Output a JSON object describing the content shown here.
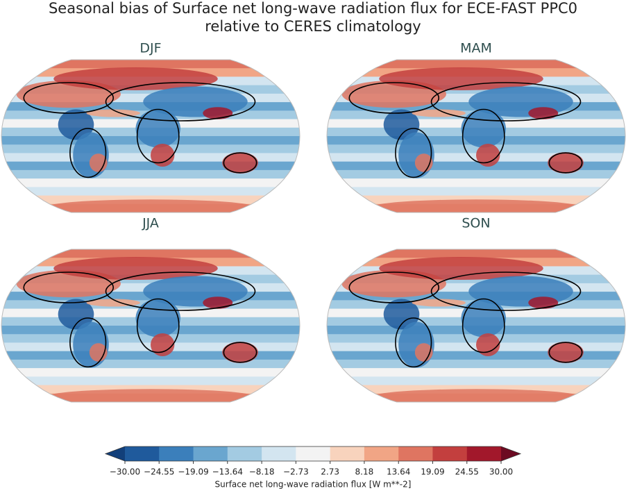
{
  "title": [
    "Seasonal bias of Surface net long-wave radiation flux for ECE-FAST PPC0",
    "relative to CERES climatology"
  ],
  "panels": [
    {
      "label": "DJF"
    },
    {
      "label": "MAM"
    },
    {
      "label": "JJA"
    },
    {
      "label": "SON"
    }
  ],
  "colorbar": {
    "ticks": [
      {
        "value": -30,
        "label": "−30.00"
      },
      {
        "value": -24.55,
        "label": "−24.55"
      },
      {
        "value": -19.09,
        "label": "−19.09"
      },
      {
        "value": -13.64,
        "label": "−13.64"
      },
      {
        "value": -8.18,
        "label": "−8.18"
      },
      {
        "value": -2.73,
        "label": "−2.73"
      },
      {
        "value": 2.73,
        "label": "2.73"
      },
      {
        "value": 8.18,
        "label": "8.18"
      },
      {
        "value": 13.64,
        "label": "13.64"
      },
      {
        "value": 19.09,
        "label": "19.09"
      },
      {
        "value": 24.55,
        "label": "24.55"
      },
      {
        "value": 30,
        "label": "30.00"
      }
    ],
    "colors": [
      "#1f5a9c",
      "#3b7fbb",
      "#6aa6cf",
      "#a3cbe2",
      "#d3e5f0",
      "#f3f3f3",
      "#f8d3bd",
      "#f1a585",
      "#df7561",
      "#c33f3e",
      "#a2182b"
    ],
    "under_color": "#123f7a",
    "over_color": "#6c0b22",
    "label": "Surface net long-wave radiation flux [W m**-2]"
  }
}
